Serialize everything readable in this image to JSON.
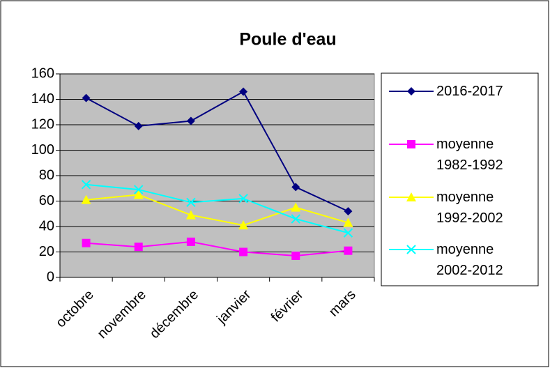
{
  "chart_data": {
    "type": "line",
    "title": "Poule d'eau",
    "categories": [
      "octobre",
      "novembre",
      "décembre",
      "janvier",
      "février",
      "mars"
    ],
    "series": [
      {
        "name": "2016-2017",
        "color": "#000080",
        "marker": "diamond",
        "values": [
          141,
          119,
          123,
          146,
          71,
          52
        ]
      },
      {
        "name": "moyenne 1982-1992",
        "color": "#ff00ff",
        "marker": "square",
        "values": [
          27,
          24,
          28,
          20,
          17,
          21
        ]
      },
      {
        "name": "moyenne 1992-2002",
        "color": "#ffff00",
        "marker": "triangle",
        "values": [
          61,
          65,
          49,
          41,
          55,
          43
        ]
      },
      {
        "name": "moyenne 2002-2012",
        "color": "#00ffff",
        "marker": "x",
        "values": [
          73,
          69,
          59,
          62,
          46,
          35
        ]
      }
    ],
    "ylim": [
      0,
      160
    ],
    "yticks": [
      0,
      20,
      40,
      60,
      80,
      100,
      120,
      140,
      160
    ],
    "grid": true,
    "legend": "right"
  }
}
